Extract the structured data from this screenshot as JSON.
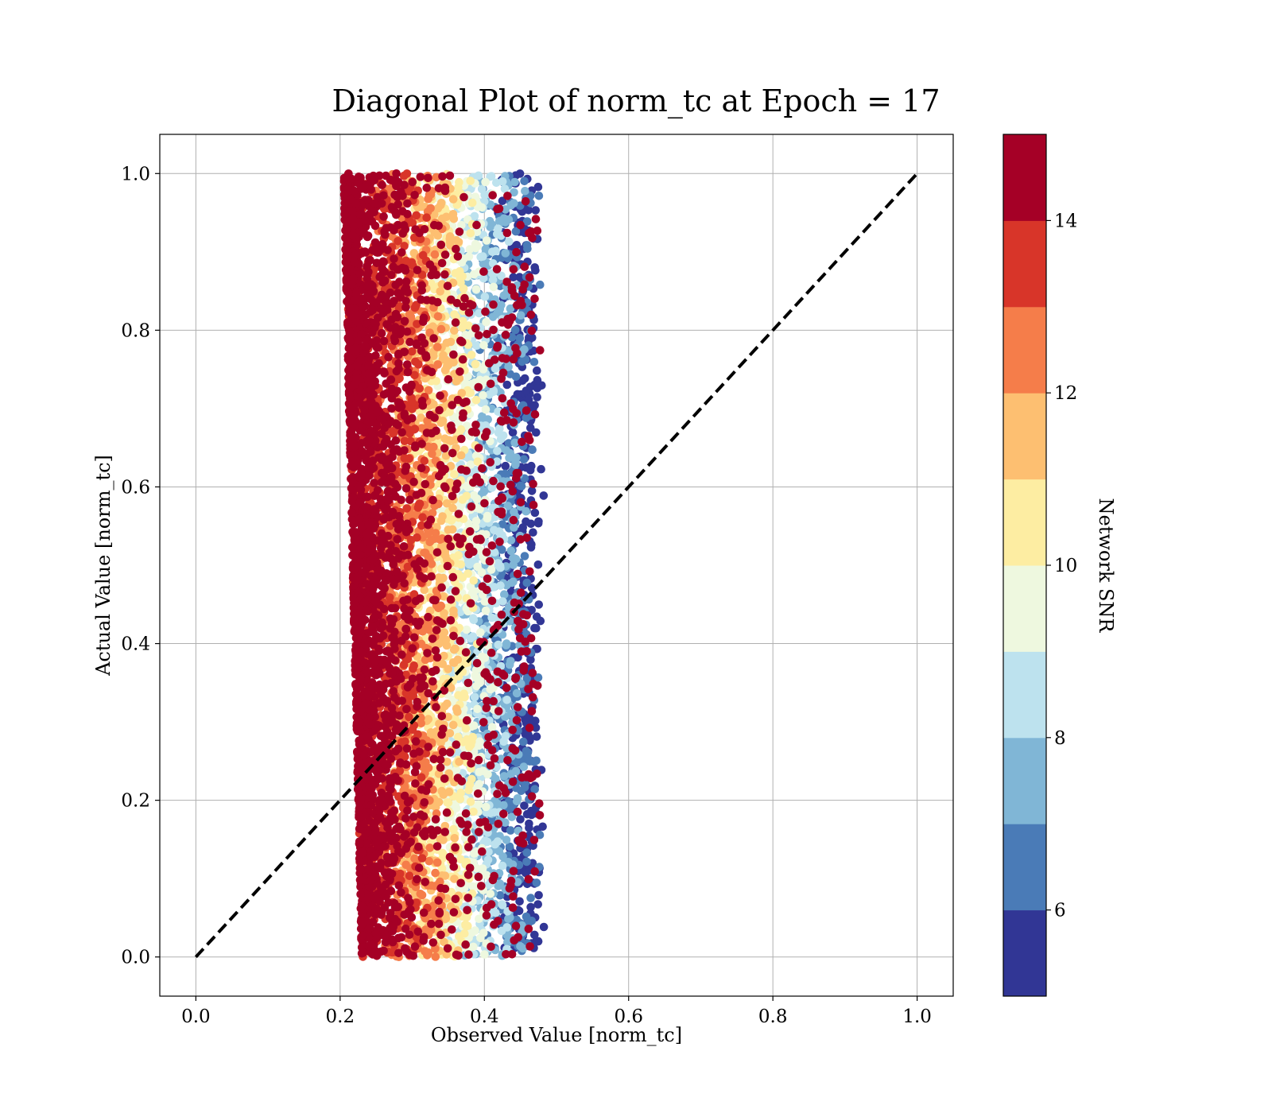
{
  "chart_data": {
    "type": "scatter",
    "title": "Diagonal Plot of norm_tc at Epoch = 17",
    "xlabel": "Observed Value [norm_tc]",
    "ylabel": "Actual Value [norm_tc]",
    "xlim": [
      -0.05,
      1.05
    ],
    "ylim": [
      -0.05,
      1.05
    ],
    "xticks": [
      "0.0",
      "0.2",
      "0.4",
      "0.6",
      "0.8",
      "1.0"
    ],
    "yticks": [
      "0.0",
      "0.2",
      "0.4",
      "0.6",
      "0.8",
      "1.0"
    ],
    "grid": true,
    "reference_line": {
      "style": "dashed",
      "color": "#000000",
      "from": [
        0.0,
        0.0
      ],
      "to": [
        1.0,
        1.0
      ]
    },
    "colorbar": {
      "label": "Network SNR",
      "range": [
        5,
        15
      ],
      "tick_values": [
        6,
        8,
        10,
        12,
        14
      ],
      "tick_labels": [
        "6",
        "8",
        "10",
        "12",
        "14"
      ],
      "colormap": "RdYlBu_r",
      "bins": [
        {
          "from": 5,
          "to": 6,
          "color": "#313695"
        },
        {
          "from": 6,
          "to": 7,
          "color": "#4a7bb7"
        },
        {
          "from": 7,
          "to": 8,
          "color": "#80b6d6"
        },
        {
          "from": 8,
          "to": 9,
          "color": "#bde2ee"
        },
        {
          "from": 9,
          "to": 10,
          "color": "#eef8df"
        },
        {
          "from": 10,
          "to": 11,
          "color": "#fdeda2"
        },
        {
          "from": 11,
          "to": 12,
          "color": "#fdbf71"
        },
        {
          "from": 12,
          "to": 13,
          "color": "#f57d4a"
        },
        {
          "from": 13,
          "to": 14,
          "color": "#d83529"
        },
        {
          "from": 14,
          "to": 15,
          "color": "#a50026"
        }
      ]
    },
    "point_cloud": {
      "x_range_observed": [
        0.19,
        0.49
      ],
      "y_range_actual": [
        0.0,
        1.0
      ],
      "snr_trend": "high SNR (>=14) concentrated near observed 0.20-0.30; lower SNR toward observed 0.40-0.48"
    }
  }
}
